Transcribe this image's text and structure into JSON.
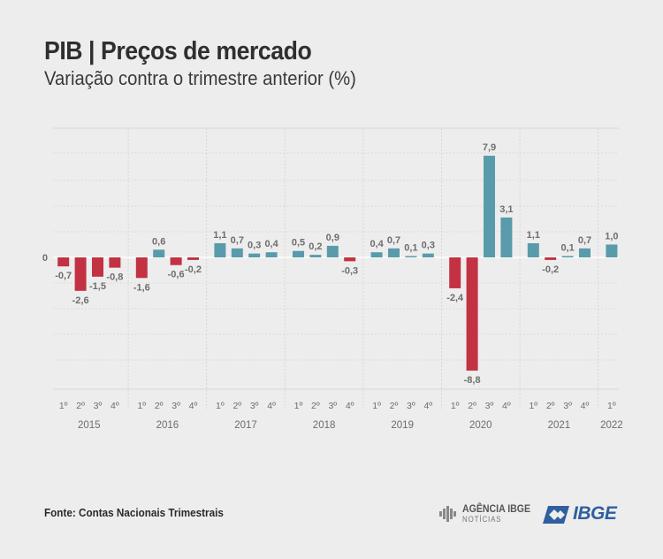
{
  "header": {
    "title": "PIB | Preços de mercado",
    "subtitle": "Variação contra o trimestre anterior (%)"
  },
  "footer": {
    "source": "Fonte: Contas Nacionais Trimestrais",
    "agencia_name": "AGÊNCIA IBGE",
    "agencia_sub": "NOTÍCIAS",
    "ibge_logo": "IBGE"
  },
  "colors": {
    "positive": "#5a9bab",
    "negative": "#c33242",
    "grid": "#d0d0d0",
    "label": "#6d6d6d"
  },
  "chart_data": {
    "type": "bar",
    "title": "PIB | Preços de mercado",
    "subtitle": "Variação contra o trimestre anterior (%)",
    "ylabel": "%",
    "ylim": [
      -10,
      10
    ],
    "zero_label": "0",
    "grid": true,
    "groups": [
      {
        "year": "2015",
        "quarters": [
          "1º",
          "2º",
          "3º",
          "4º"
        ],
        "values": [
          -0.7,
          -2.6,
          -1.5,
          -0.8
        ],
        "labels": [
          "-0,7",
          "-2,6",
          "-1,5",
          "-0,8"
        ]
      },
      {
        "year": "2016",
        "quarters": [
          "1º",
          "2º",
          "3º",
          "4º"
        ],
        "values": [
          -1.6,
          0.6,
          -0.6,
          -0.2
        ],
        "labels": [
          "-1,6",
          "0,6",
          "-0,6",
          "-0,2"
        ]
      },
      {
        "year": "2017",
        "quarters": [
          "1º",
          "2º",
          "3º",
          "4º"
        ],
        "values": [
          1.1,
          0.7,
          0.3,
          0.4
        ],
        "labels": [
          "1,1",
          "0,7",
          "0,3",
          "0,4"
        ]
      },
      {
        "year": "2018",
        "quarters": [
          "1º",
          "2º",
          "3º",
          "4º"
        ],
        "values": [
          0.5,
          0.2,
          0.9,
          -0.3
        ],
        "labels": [
          "0,5",
          "0,2",
          "0,9",
          "-0,3"
        ]
      },
      {
        "year": "2019",
        "quarters": [
          "1º",
          "2º",
          "3º",
          "4º"
        ],
        "values": [
          0.4,
          0.7,
          0.1,
          0.3
        ],
        "labels": [
          "0,4",
          "0,7",
          "0,1",
          "0,3"
        ]
      },
      {
        "year": "2020",
        "quarters": [
          "1º",
          "2º",
          "3º",
          "4º"
        ],
        "values": [
          -2.4,
          -8.8,
          7.9,
          3.1
        ],
        "labels": [
          "-2,4",
          "-8,8",
          "7,9",
          "3,1"
        ]
      },
      {
        "year": "2021",
        "quarters": [
          "1º",
          "2º",
          "3º",
          "4º"
        ],
        "values": [
          1.1,
          -0.2,
          0.1,
          0.7
        ],
        "labels": [
          "1,1",
          "-0,2",
          "0,1",
          "0,7"
        ]
      },
      {
        "year": "2022",
        "quarters": [
          "1º"
        ],
        "values": [
          1.0
        ],
        "labels": [
          "1,0"
        ]
      }
    ]
  }
}
